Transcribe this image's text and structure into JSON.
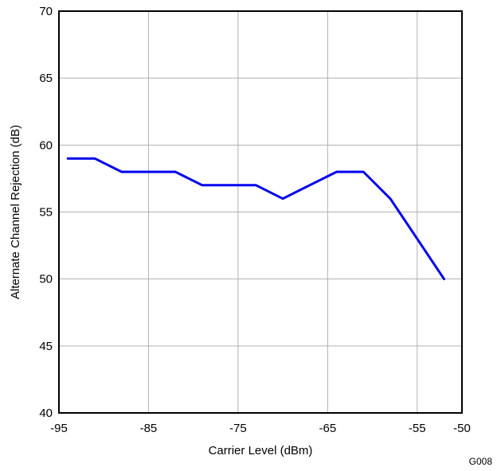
{
  "chart_data": {
    "type": "line",
    "title": "",
    "xlabel": "Carrier Level (dBm)",
    "ylabel": "Alternate Channel Rejection (dB)",
    "xlim": [
      -95,
      -50
    ],
    "ylim": [
      40,
      70
    ],
    "xticks": [
      -95,
      -85,
      -75,
      -65,
      -55,
      -50
    ],
    "yticks": [
      40,
      45,
      50,
      55,
      60,
      65,
      70
    ],
    "xtick_labels": [
      "-95",
      "-85",
      "-75",
      "-65",
      "-55",
      "-50"
    ],
    "ytick_labels": [
      "40",
      "45",
      "50",
      "55",
      "60",
      "65",
      "70"
    ],
    "grid": true,
    "legend": "none",
    "figure_code": "G008",
    "series": [
      {
        "color": "#0000ee",
        "x": [
          -94,
          -91,
          -88,
          -85,
          -82,
          -79,
          -76,
          -73,
          -70,
          -67,
          -64,
          -61,
          -58,
          -55,
          -52
        ],
        "y": [
          59,
          59,
          58,
          58,
          58,
          57,
          57,
          57,
          56,
          57,
          58,
          58,
          56,
          53,
          50
        ]
      }
    ]
  }
}
